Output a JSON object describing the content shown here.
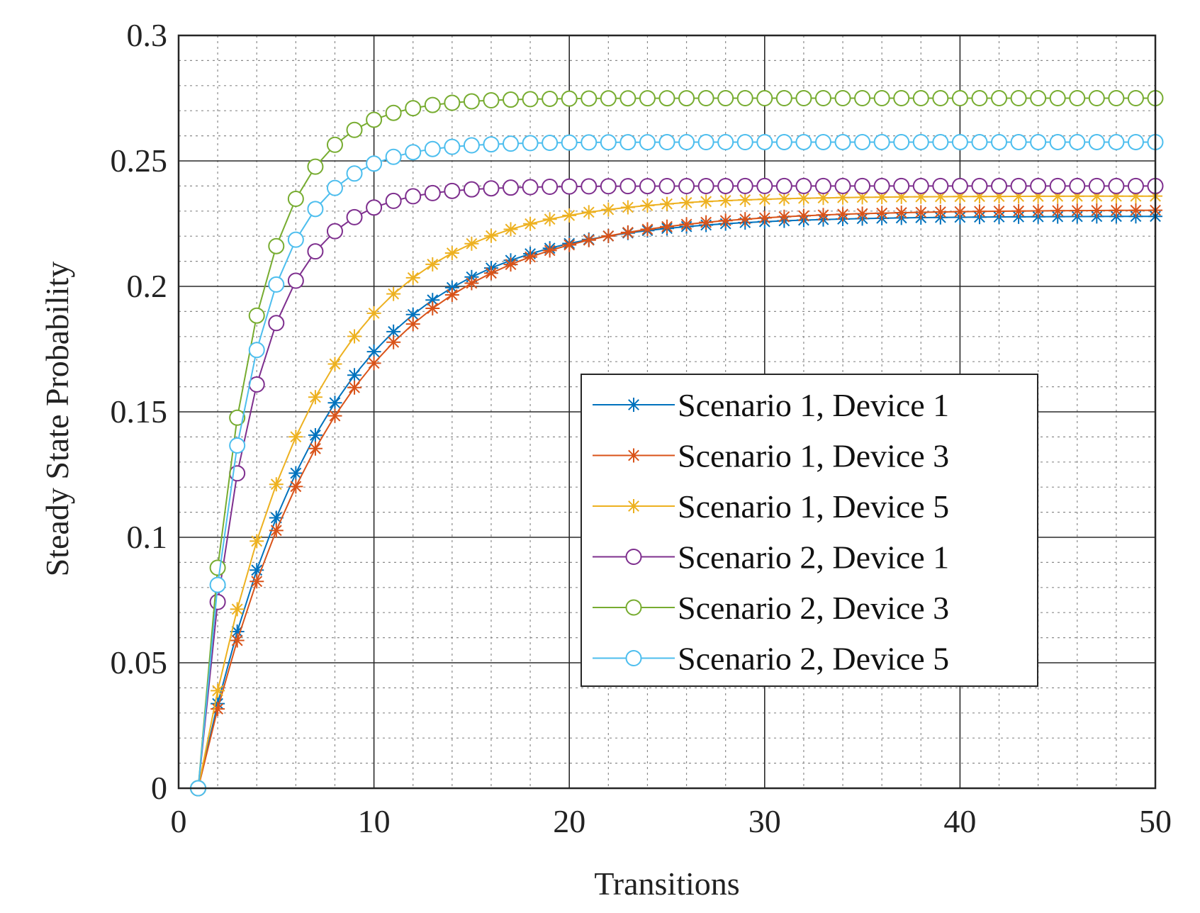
{
  "chart_data": {
    "type": "line",
    "title": "",
    "xlabel": "Transitions",
    "ylabel": "Steady State Probability",
    "xlim": [
      0,
      50
    ],
    "ylim": [
      0,
      0.3
    ],
    "xticks": [
      0,
      10,
      20,
      30,
      40,
      50
    ],
    "xtick_labels": [
      "0",
      "10",
      "20",
      "30",
      "40",
      "50"
    ],
    "yticks": [
      0,
      0.05,
      0.1,
      0.15,
      0.2,
      0.25,
      0.3
    ],
    "ytick_labels": [
      "0",
      "0.05",
      "0.1",
      "0.15",
      "0.2",
      "0.25",
      "0.3"
    ],
    "grid": "major and minor",
    "legend_position": "right",
    "series": [
      {
        "name": "Scenario 1, Device 1",
        "color": "#0072BD",
        "marker": "asterisk",
        "x_start": 1,
        "x_end": 50,
        "final": 0.228,
        "rate": 0.16
      },
      {
        "name": "Scenario 1, Device 3",
        "color": "#D95319",
        "marker": "asterisk",
        "x_start": 1,
        "x_end": 50,
        "final": 0.2305,
        "rate": 0.1475
      },
      {
        "name": "Scenario 1, Device 5",
        "color": "#EDB120",
        "marker": "asterisk",
        "x_start": 1,
        "x_end": 50,
        "final": 0.236,
        "rate": 0.18
      },
      {
        "name": "Scenario 2, Device 1",
        "color": "#7E2F8E",
        "marker": "circle",
        "x_start": 1,
        "x_end": 50,
        "final": 0.24,
        "rate": 0.37
      },
      {
        "name": "Scenario 2, Device 3",
        "color": "#77AC30",
        "marker": "circle",
        "x_start": 1,
        "x_end": 50,
        "final": 0.275,
        "rate": 0.385
      },
      {
        "name": "Scenario 2, Device 5",
        "color": "#4DBEEE",
        "marker": "circle",
        "x_start": 1,
        "x_end": 50,
        "final": 0.2575,
        "rate": 0.378
      }
    ]
  }
}
